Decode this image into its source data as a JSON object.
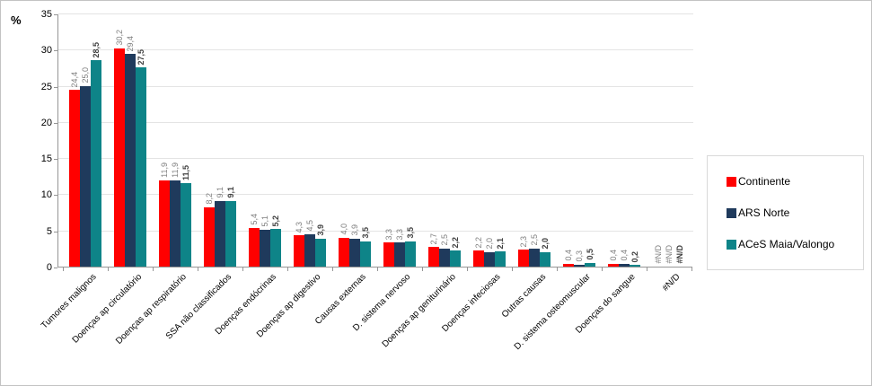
{
  "chart_data": {
    "type": "bar",
    "title": "",
    "ylabel": "%",
    "xlabel": "",
    "ylim": [
      0,
      35
    ],
    "yticks": [
      0,
      5,
      10,
      15,
      20,
      25,
      30,
      35
    ],
    "grid": true,
    "legend_position": "right",
    "categories": [
      "Tumores malignos",
      "Doenças ap circulatório",
      "Doenças ap respiratório",
      "SSA não classificados",
      "Doenças endócrinas",
      "Doenças ap digestivo",
      "Causas externas",
      "D. sistema nervoso",
      "Doenças ap geniturinário",
      "Doenças infeciosas",
      "Outras causas",
      "D. sistema osteomuscular",
      "Doenças do sangue",
      "#N/D"
    ],
    "series": [
      {
        "name": "Continente",
        "color": "#ff0000",
        "values": [
          24.4,
          30.2,
          11.9,
          8.2,
          5.4,
          4.3,
          4.0,
          3.3,
          2.7,
          2.2,
          2.3,
          0.4,
          0.4,
          null
        ],
        "labels": [
          "24,4",
          "30,2",
          "11,9",
          "8,2",
          "5,4",
          "4,3",
          "4,0",
          "3,3",
          "2,7",
          "2,2",
          "2,3",
          "0,4",
          "0,4",
          "#N/D"
        ]
      },
      {
        "name": "ARS Norte",
        "color": "#1f3a5c",
        "values": [
          25.0,
          29.4,
          11.9,
          9.1,
          5.1,
          4.5,
          3.9,
          3.3,
          2.5,
          2.0,
          2.5,
          0.3,
          0.4,
          null
        ],
        "labels": [
          "25,0",
          "29,4",
          "11,9",
          "9,1",
          "5,1",
          "4,5",
          "3,9",
          "3,3",
          "2,5",
          "2,0",
          "2,5",
          "0,3",
          "0,4",
          "#N/D"
        ]
      },
      {
        "name": "ACeS Maia/Valongo",
        "color": "#0e8488",
        "values": [
          28.5,
          27.5,
          11.5,
          9.1,
          5.2,
          3.9,
          3.5,
          3.5,
          2.2,
          2.1,
          2.0,
          0.5,
          0.2,
          null
        ],
        "labels": [
          "28,5",
          "27,5",
          "11,5",
          "9,1",
          "5,2",
          "3,9",
          "3,5",
          "3,5",
          "2,2",
          "2,1",
          "2,0",
          "0,5",
          "0,2",
          "#N/D"
        ]
      }
    ],
    "label_colors": {
      "regular": "#7f7f7f",
      "emphasis": "#404040"
    }
  }
}
